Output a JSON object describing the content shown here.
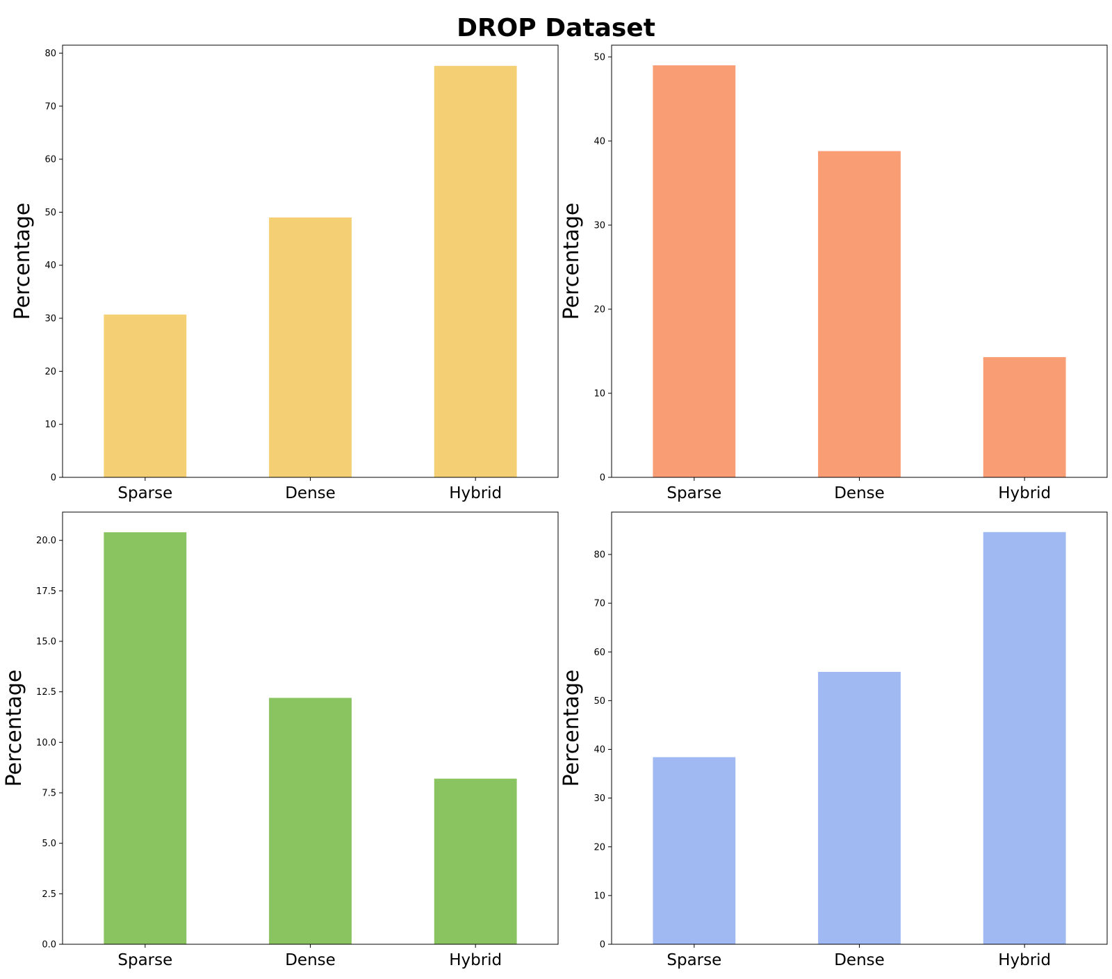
{
  "figure": {
    "title": "DROP Dataset"
  },
  "chart_data": [
    {
      "type": "bar",
      "categories": [
        "Sparse",
        "Dense",
        "Hybrid"
      ],
      "values": [
        30.7,
        49.0,
        77.6
      ],
      "ylabel": "Percentage",
      "ylim": [
        0,
        81.5
      ],
      "yticks": [
        0,
        10,
        20,
        30,
        40,
        50,
        60,
        70,
        80
      ],
      "tick_decimals": 0,
      "color": "#f5cf73",
      "grid": false
    },
    {
      "type": "bar",
      "categories": [
        "Sparse",
        "Dense",
        "Hybrid"
      ],
      "values": [
        49.0,
        38.8,
        14.3
      ],
      "ylabel": "Percentage",
      "ylim": [
        0,
        51.4
      ],
      "yticks": [
        0,
        10,
        20,
        30,
        40,
        50
      ],
      "tick_decimals": 0,
      "color": "#f99d75",
      "grid": false
    },
    {
      "type": "bar",
      "categories": [
        "Sparse",
        "Dense",
        "Hybrid"
      ],
      "values": [
        20.4,
        12.2,
        8.2
      ],
      "ylabel": "Percentage",
      "ylim": [
        0,
        21.4
      ],
      "yticks": [
        0,
        2.5,
        5,
        7.5,
        10,
        12.5,
        15,
        17.5,
        20
      ],
      "tick_decimals": 1,
      "color": "#8ac460",
      "grid": false
    },
    {
      "type": "bar",
      "categories": [
        "Sparse",
        "Dense",
        "Hybrid"
      ],
      "values": [
        38.4,
        55.9,
        84.6
      ],
      "ylabel": "Percentage",
      "ylim": [
        0,
        88.7
      ],
      "yticks": [
        0,
        10,
        20,
        30,
        40,
        50,
        60,
        70,
        80
      ],
      "tick_decimals": 0,
      "color": "#a0b9f3",
      "grid": false
    }
  ]
}
